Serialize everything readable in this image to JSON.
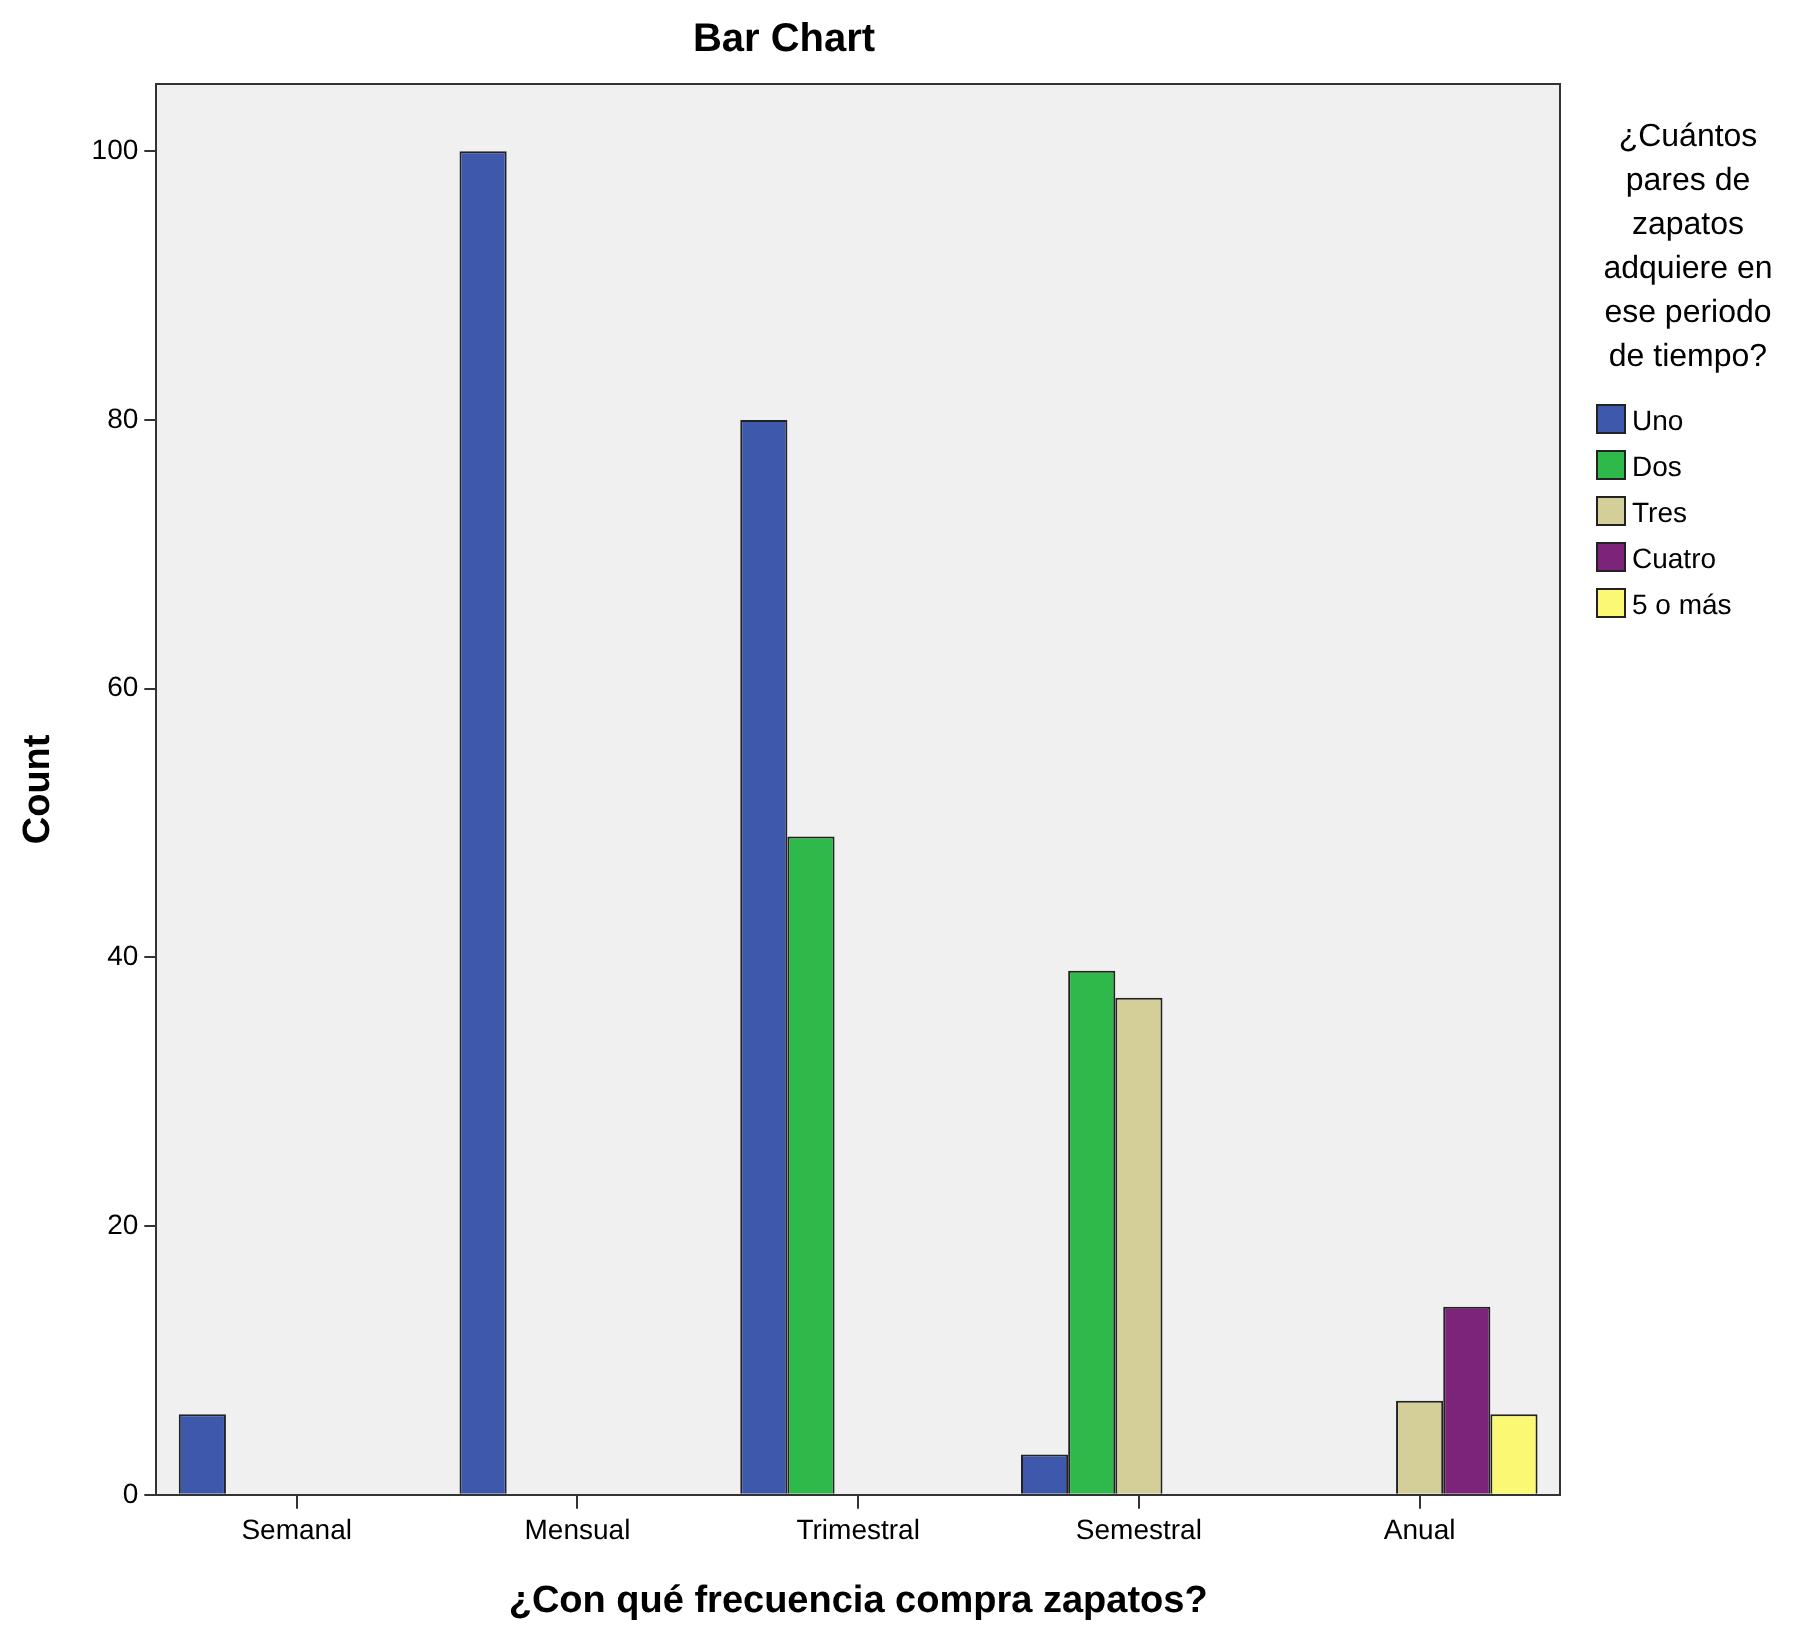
{
  "chart_data": {
    "type": "bar",
    "title": "Bar Chart",
    "xlabel": "¿Con qué frecuencia compra zapatos?",
    "ylabel": "Count",
    "legend_title": "¿Cuántos pares de zapatos adquiere en ese periodo de tiempo?",
    "legend": "right",
    "grid": false,
    "categories": [
      "Semanal",
      "Mensual",
      "Trimestral",
      "Semestral",
      "Anual"
    ],
    "series": [
      {
        "name": "Uno",
        "color": "#3e58ac",
        "values": [
          6,
          100,
          80,
          3,
          null
        ]
      },
      {
        "name": "Dos",
        "color": "#2fb94a",
        "values": [
          null,
          null,
          49,
          39,
          null
        ]
      },
      {
        "name": "Tres",
        "color": "#d4cf98",
        "values": [
          null,
          null,
          null,
          37,
          7
        ]
      },
      {
        "name": "Cuatro",
        "color": "#7b2479",
        "values": [
          null,
          null,
          null,
          null,
          14
        ]
      },
      {
        "name": "5 o más",
        "color": "#fbf874",
        "values": [
          null,
          null,
          null,
          null,
          6
        ]
      }
    ],
    "ylim": [
      0,
      105
    ],
    "yticks": [
      0,
      20,
      40,
      60,
      80,
      100
    ]
  }
}
